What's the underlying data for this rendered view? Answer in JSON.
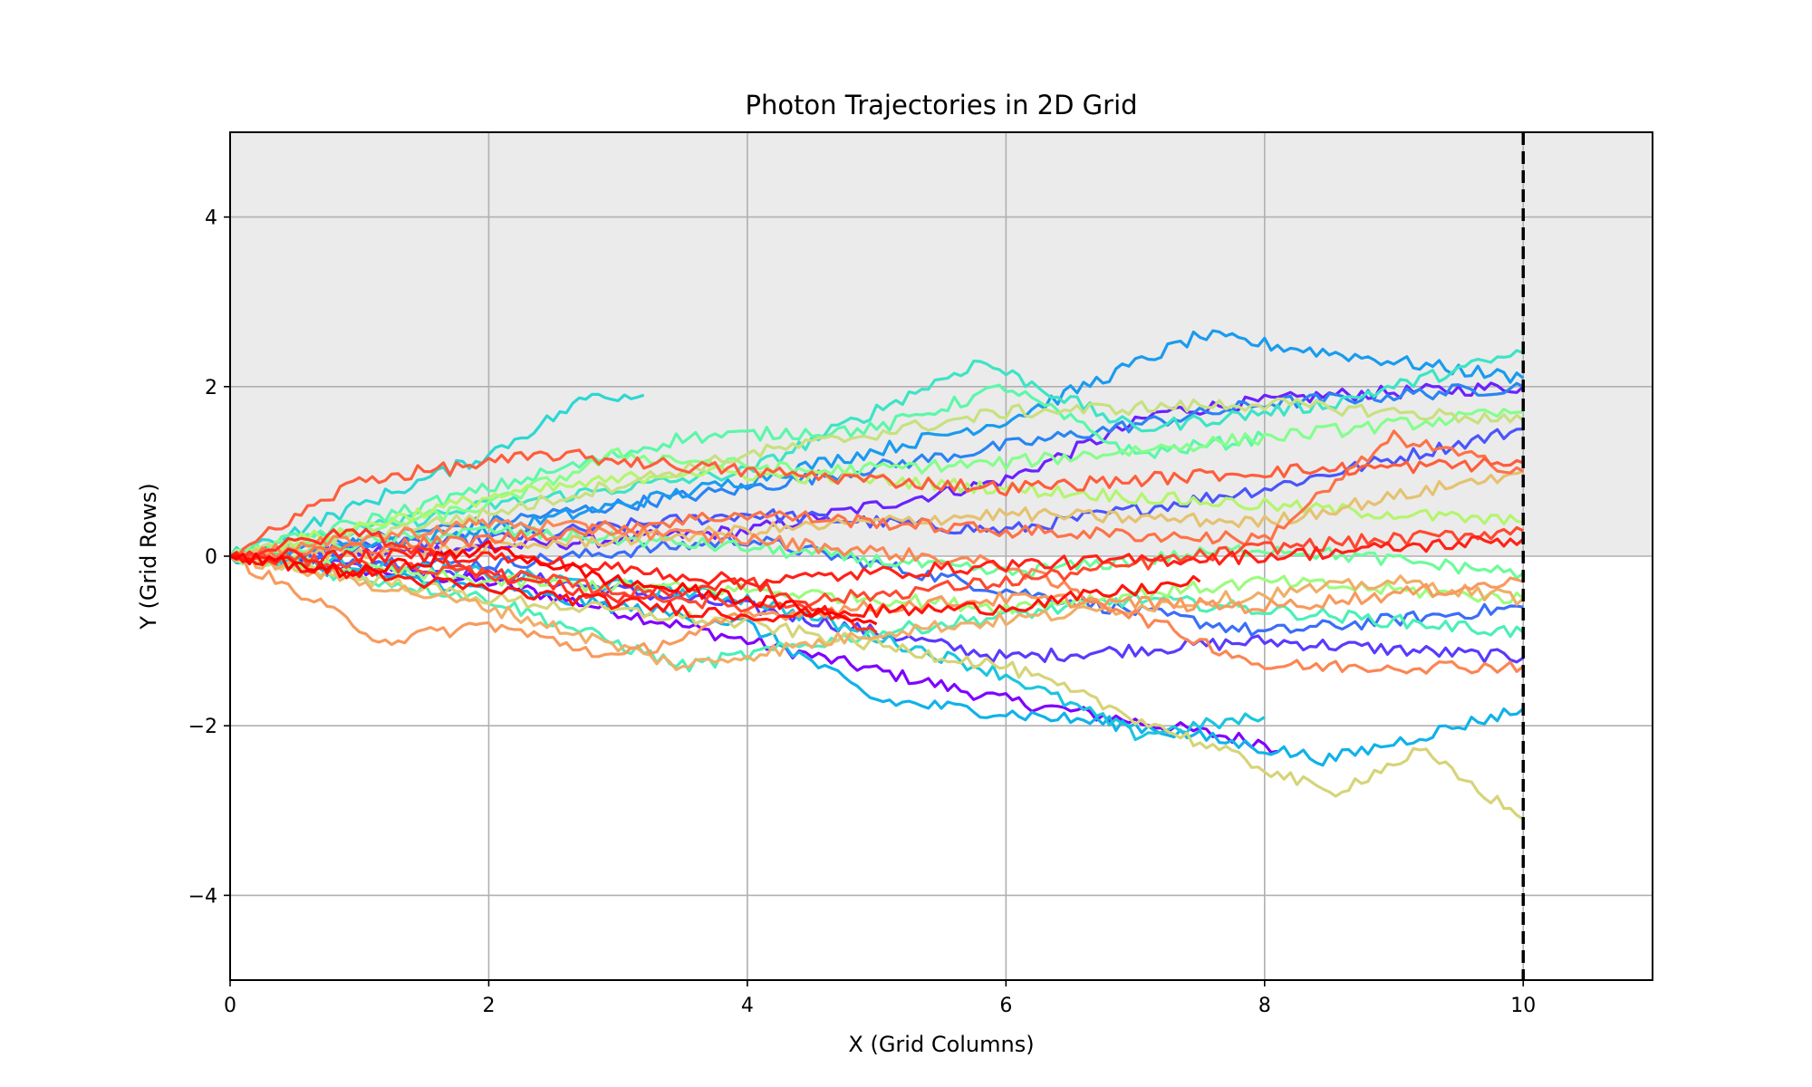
{
  "chart_data": {
    "type": "line",
    "title": "Photon Trajectories in 2D Grid",
    "xlabel": "X (Grid Columns)",
    "ylabel": "Y (Grid Rows)",
    "xlim": [
      0,
      11
    ],
    "ylim": [
      -5,
      5
    ],
    "x_ticks": [
      0,
      2,
      4,
      6,
      8,
      10
    ],
    "y_ticks": [
      -4,
      -2,
      0,
      2,
      4
    ],
    "grid": true,
    "legend": "none",
    "upper_half_shading": {
      "y_from": 0,
      "y_to": 5,
      "color": "#ebebeb"
    },
    "vertical_line": {
      "x": 10,
      "style": "dashed",
      "color": "#000000"
    },
    "colormap": "rainbow",
    "series_step_x": 0.05,
    "series": [
      {
        "color": "#7f00ff",
        "anchors": [
          [
            0,
            0
          ],
          [
            2,
            -0.3
          ],
          [
            4,
            -1.0
          ],
          [
            6,
            -1.7
          ],
          [
            8,
            -2.2
          ],
          [
            8.1,
            -2.3
          ]
        ]
      },
      {
        "color": "#6a22fe",
        "anchors": [
          [
            0,
            0
          ],
          [
            2,
            0.1
          ],
          [
            4,
            0.3
          ],
          [
            6,
            0.9
          ],
          [
            7.2,
            1.7
          ],
          [
            8.5,
            1.9
          ],
          [
            10,
            2.0
          ]
        ]
      },
      {
        "color": "#5a3afd",
        "anchors": [
          [
            0,
            0
          ],
          [
            2,
            -0.2
          ],
          [
            4,
            -0.6
          ],
          [
            6,
            -1.2
          ],
          [
            8,
            -1.0
          ],
          [
            10,
            -1.2
          ]
        ]
      },
      {
        "color": "#4a55fb",
        "anchors": [
          [
            0,
            0
          ],
          [
            2,
            0.2
          ],
          [
            4,
            0.5
          ],
          [
            6,
            0.3
          ],
          [
            8,
            0.8
          ],
          [
            10,
            1.5
          ]
        ]
      },
      {
        "color": "#3a6ef8",
        "anchors": [
          [
            0,
            0
          ],
          [
            2,
            -0.1
          ],
          [
            4,
            0.2
          ],
          [
            6,
            -0.4
          ],
          [
            8,
            -0.9
          ],
          [
            10,
            -0.6
          ]
        ]
      },
      {
        "color": "#2a84f3",
        "anchors": [
          [
            0,
            0
          ],
          [
            2,
            0.4
          ],
          [
            4,
            0.8
          ],
          [
            6,
            1.3
          ],
          [
            8,
            1.8
          ],
          [
            10,
            2.0
          ]
        ]
      },
      {
        "color": "#1a9bee",
        "anchors": [
          [
            0,
            0
          ],
          [
            2,
            0.3
          ],
          [
            4,
            0.9
          ],
          [
            6,
            1.6
          ],
          [
            7.5,
            2.6
          ],
          [
            9,
            2.3
          ],
          [
            10,
            2.1
          ]
        ]
      },
      {
        "color": "#10b2e8",
        "anchors": [
          [
            0,
            0
          ],
          [
            2,
            -0.4
          ],
          [
            4,
            -0.8
          ],
          [
            5,
            -1.7
          ],
          [
            7,
            -2.0
          ],
          [
            8.5,
            -2.4
          ],
          [
            10,
            -1.8
          ]
        ]
      },
      {
        "color": "#1cc5dd",
        "anchors": [
          [
            0,
            0
          ],
          [
            2,
            -0.2
          ],
          [
            4,
            -0.5
          ],
          [
            6,
            -1.4
          ],
          [
            7,
            -2.1
          ],
          [
            8,
            -1.9
          ]
        ]
      },
      {
        "color": "#2cd7d2",
        "anchors": [
          [
            0,
            0
          ],
          [
            1,
            0.6
          ],
          [
            2,
            1.2
          ],
          [
            2.8,
            1.9
          ],
          [
            3.2,
            1.9
          ]
        ]
      },
      {
        "color": "#3ce4c5",
        "anchors": [
          [
            0,
            0
          ],
          [
            2,
            0.6
          ],
          [
            4,
            1.0
          ],
          [
            5.8,
            2.3
          ],
          [
            7,
            1.5
          ],
          [
            8.5,
            1.8
          ],
          [
            10,
            2.4
          ]
        ]
      },
      {
        "color": "#4cefb8",
        "anchors": [
          [
            0,
            0
          ],
          [
            2,
            -0.5
          ],
          [
            3.5,
            -1.3
          ],
          [
            5,
            -0.9
          ],
          [
            7,
            -0.5
          ],
          [
            10,
            -0.9
          ]
        ]
      },
      {
        "color": "#5cf7aa",
        "anchors": [
          [
            0,
            0
          ],
          [
            2,
            0.8
          ],
          [
            3.5,
            1.4
          ],
          [
            5,
            1.5
          ],
          [
            6,
            2.0
          ],
          [
            7,
            1.2
          ],
          [
            8,
            1.4
          ]
        ]
      },
      {
        "color": "#6cfc9b",
        "anchors": [
          [
            0,
            0
          ],
          [
            2,
            0.3
          ],
          [
            4,
            0.1
          ],
          [
            6,
            -0.2
          ],
          [
            8,
            0.1
          ],
          [
            10,
            -0.2
          ]
        ]
      },
      {
        "color": "#84fe8c",
        "anchors": [
          [
            0,
            0
          ],
          [
            2,
            0.6
          ],
          [
            3,
            1.2
          ],
          [
            4.5,
            1.0
          ],
          [
            6,
            1.1
          ],
          [
            8,
            1.4
          ],
          [
            10,
            1.7
          ]
        ]
      },
      {
        "color": "#9cfc7d",
        "anchors": [
          [
            0,
            0
          ],
          [
            2,
            -0.3
          ],
          [
            4,
            -0.4
          ],
          [
            6,
            -0.6
          ],
          [
            8,
            -0.3
          ],
          [
            10,
            -0.5
          ]
        ]
      },
      {
        "color": "#b4f56e",
        "anchors": [
          [
            0,
            0
          ],
          [
            2,
            0.7
          ],
          [
            3.5,
            1.0
          ],
          [
            5,
            0.9
          ],
          [
            7,
            0.7
          ],
          [
            9,
            0.5
          ],
          [
            10,
            0.4
          ]
        ]
      },
      {
        "color": "#c8e080",
        "anchors": [
          [
            0,
            0
          ],
          [
            2,
            0.5
          ],
          [
            4,
            1.2
          ],
          [
            6,
            1.7
          ],
          [
            8,
            1.8
          ],
          [
            10,
            1.6
          ]
        ]
      },
      {
        "color": "#d6d478",
        "anchors": [
          [
            0,
            0
          ],
          [
            2,
            -0.5
          ],
          [
            4,
            -0.8
          ],
          [
            6,
            -1.3
          ],
          [
            7.5,
            -2.2
          ],
          [
            8.5,
            -2.8
          ],
          [
            9.2,
            -2.3
          ],
          [
            10,
            -3.1
          ]
        ]
      },
      {
        "color": "#e4c270",
        "anchors": [
          [
            0,
            0
          ],
          [
            2,
            0.1
          ],
          [
            4,
            0.3
          ],
          [
            6,
            0.5
          ],
          [
            8,
            0.4
          ],
          [
            10,
            1.0
          ]
        ]
      },
      {
        "color": "#f0ae68",
        "anchors": [
          [
            0,
            0
          ],
          [
            2,
            -0.6
          ],
          [
            3.5,
            -1.3
          ],
          [
            5,
            -0.9
          ],
          [
            7,
            -0.6
          ],
          [
            9,
            -0.3
          ],
          [
            10,
            -0.5
          ]
        ]
      },
      {
        "color": "#f79a5e",
        "anchors": [
          [
            0,
            0
          ],
          [
            1.2,
            -1.0
          ],
          [
            2,
            -0.8
          ],
          [
            3,
            -1.2
          ],
          [
            4,
            -0.7
          ],
          [
            6,
            -0.5
          ],
          [
            8,
            -0.6
          ],
          [
            10,
            -0.3
          ]
        ]
      },
      {
        "color": "#fb8654",
        "anchors": [
          [
            0,
            0
          ],
          [
            2,
            0.4
          ],
          [
            4,
            0.2
          ],
          [
            6,
            -0.1
          ],
          [
            8,
            -1.3
          ],
          [
            10,
            -1.3
          ]
        ]
      },
      {
        "color": "#fd7248",
        "anchors": [
          [
            0,
            0
          ],
          [
            2,
            0.2
          ],
          [
            4,
            0.5
          ],
          [
            6,
            0.3
          ],
          [
            8,
            0.2
          ],
          [
            9,
            1.4
          ],
          [
            10,
            1.0
          ]
        ]
      },
      {
        "color": "#fe5d3c",
        "anchors": [
          [
            0,
            0
          ],
          [
            1,
            0.9
          ],
          [
            2.5,
            1.2
          ],
          [
            4,
            1.0
          ],
          [
            6,
            0.8
          ],
          [
            8,
            1.0
          ],
          [
            10,
            1.1
          ]
        ]
      },
      {
        "color": "#ff4830",
        "anchors": [
          [
            0,
            0
          ],
          [
            2,
            -0.2
          ],
          [
            4,
            -0.6
          ],
          [
            6,
            -0.3
          ],
          [
            8,
            0.1
          ],
          [
            10,
            0.3
          ]
        ]
      },
      {
        "color": "#ff3324",
        "anchors": [
          [
            0,
            0
          ],
          [
            1,
            0.3
          ],
          [
            2,
            -0.2
          ],
          [
            3,
            -0.5
          ],
          [
            4,
            -0.3
          ],
          [
            5,
            -0.9
          ]
        ]
      },
      {
        "color": "#ff2218",
        "anchors": [
          [
            0,
            0
          ],
          [
            2,
            0.0
          ],
          [
            4,
            -0.3
          ],
          [
            6,
            -0.1
          ],
          [
            8,
            0.0
          ],
          [
            10,
            0.2
          ]
        ]
      },
      {
        "color": "#ff140c",
        "anchors": [
          [
            0,
            0
          ],
          [
            2,
            -0.4
          ],
          [
            4,
            -0.7
          ],
          [
            6,
            -0.6
          ],
          [
            7.5,
            -0.3
          ]
        ]
      },
      {
        "color": "#ff0000",
        "anchors": [
          [
            0,
            0
          ],
          [
            1,
            -0.2
          ],
          [
            2,
            0.1
          ],
          [
            3,
            -0.3
          ],
          [
            4,
            -0.5
          ],
          [
            5,
            -0.8
          ]
        ]
      }
    ]
  }
}
